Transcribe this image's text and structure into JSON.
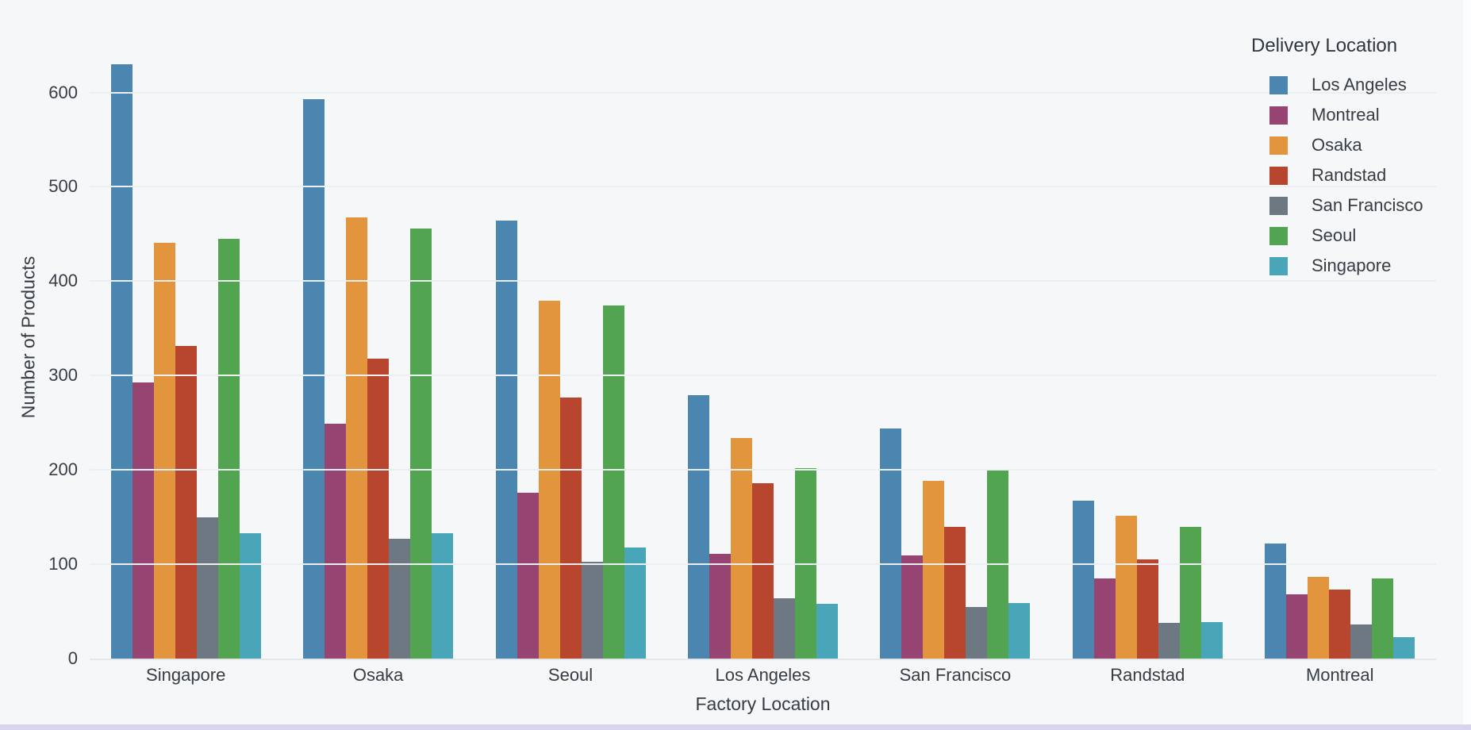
{
  "page": {
    "background_color": "#f5f7f8",
    "bottom_strip_color": "#d8d4f0",
    "right_strip_color": "#fcfdfe",
    "gridline_color": "#eceff1",
    "axis_text_color": "#363d44"
  },
  "chart_data": {
    "type": "bar",
    "title": "",
    "xlabel": "Factory Location",
    "ylabel": "Number of Products",
    "legend_title": "Delivery Location",
    "legend_position": "top-right",
    "grid": true,
    "yticks": [
      0,
      100,
      200,
      300,
      400,
      500,
      600
    ],
    "ylim": [
      0,
      698
    ],
    "categories": [
      "Singapore",
      "Osaka",
      "Seoul",
      "Los Angeles",
      "San Francisco",
      "Randstad",
      "Montreal"
    ],
    "series": [
      {
        "name": "Los Angeles",
        "color": "#4a86af",
        "values": [
          630,
          593,
          464,
          279,
          244,
          167,
          122
        ]
      },
      {
        "name": "Montreal",
        "color": "#964573",
        "values": [
          293,
          249,
          176,
          111,
          109,
          85,
          68
        ]
      },
      {
        "name": "Osaka",
        "color": "#e2953c",
        "values": [
          441,
          468,
          379,
          234,
          188,
          151,
          87
        ]
      },
      {
        "name": "Randstad",
        "color": "#b8462e",
        "values": [
          331,
          318,
          277,
          186,
          140,
          105,
          73
        ]
      },
      {
        "name": "San Francisco",
        "color": "#6d7883",
        "values": [
          150,
          127,
          103,
          64,
          55,
          38,
          36
        ]
      },
      {
        "name": "Seoul",
        "color": "#53a451",
        "values": [
          445,
          456,
          374,
          202,
          200,
          140,
          85
        ]
      },
      {
        "name": "Singapore",
        "color": "#49a5b8",
        "values": [
          133,
          133,
          118,
          58,
          59,
          39,
          23
        ]
      }
    ]
  }
}
